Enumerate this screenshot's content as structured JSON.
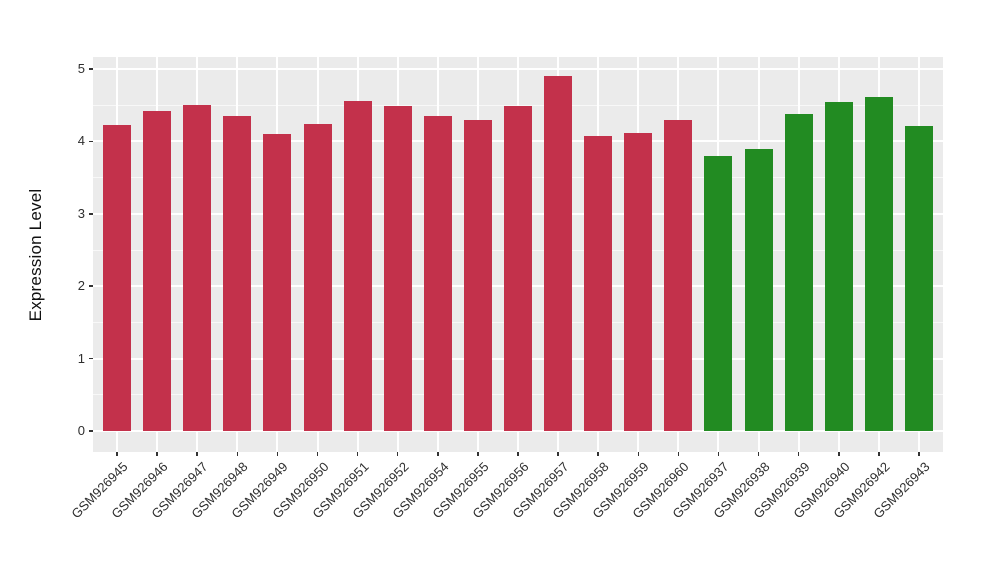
{
  "figure": {
    "background": "#FFFFFF",
    "panel_background": "#EBEBEB",
    "grid_major_color": "#FFFFFF",
    "axis_text_color": "#2e2e2e"
  },
  "chart_data": {
    "type": "bar",
    "title": "",
    "xlabel": "",
    "ylabel": "Expression Level",
    "ylim": [
      0,
      5
    ],
    "yticks": [
      0,
      1,
      2,
      3,
      4,
      5
    ],
    "minor_yticks": [
      0.5,
      1.5,
      2.5,
      3.5,
      4.5
    ],
    "grid": "major horizontal + minor horizontal + vertical per category",
    "legend_position": "none",
    "group_colors": {
      "group1": "#C3314B",
      "group2": "#228B22"
    },
    "categories": [
      "GSM926945",
      "GSM926946",
      "GSM926947",
      "GSM926948",
      "GSM926949",
      "GSM926950",
      "GSM926951",
      "GSM926952",
      "GSM926954",
      "GSM926955",
      "GSM926956",
      "GSM926957",
      "GSM926958",
      "GSM926959",
      "GSM926960",
      "GSM926937",
      "GSM926938",
      "GSM926939",
      "GSM926940",
      "GSM926942",
      "GSM926943"
    ],
    "values": [
      4.22,
      4.42,
      4.5,
      4.35,
      4.1,
      4.24,
      4.56,
      4.49,
      4.35,
      4.3,
      4.49,
      4.91,
      4.07,
      4.11,
      4.29,
      3.8,
      3.89,
      4.38,
      4.55,
      4.61,
      4.21
    ],
    "colors": [
      "#C3314B",
      "#C3314B",
      "#C3314B",
      "#C3314B",
      "#C3314B",
      "#C3314B",
      "#C3314B",
      "#C3314B",
      "#C3314B",
      "#C3314B",
      "#C3314B",
      "#C3314B",
      "#C3314B",
      "#C3314B",
      "#C3314B",
      "#228B22",
      "#228B22",
      "#228B22",
      "#228B22",
      "#228B22",
      "#228B22"
    ]
  }
}
